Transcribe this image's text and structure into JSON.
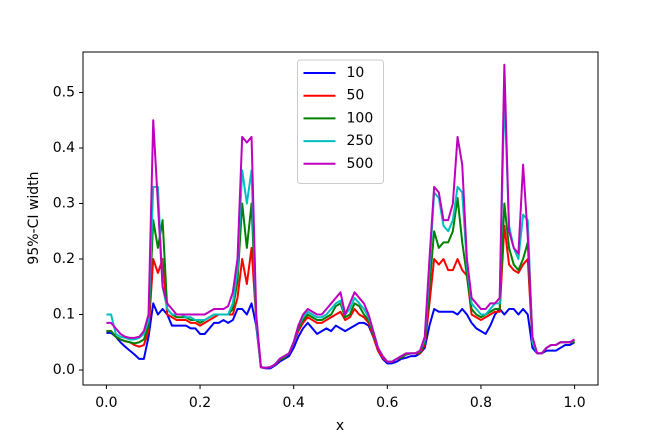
{
  "chart_data": {
    "type": "line",
    "xlabel": "x",
    "ylabel": "95%-CI width",
    "xlim": [
      -0.05,
      1.05
    ],
    "ylim": [
      -0.027,
      0.573
    ],
    "xticks": [
      {
        "value": 0,
        "label": "0.0"
      },
      0.2,
      0.4,
      0.6,
      0.8,
      {
        "value": 1,
        "label": "1.0"
      }
    ],
    "yticks": [
      {
        "value": 0,
        "label": "0.0"
      },
      0.1,
      0.2,
      0.3,
      0.4,
      0.5
    ],
    "legend": "upper center",
    "x": [
      0,
      0.01,
      0.02,
      0.03,
      0.04,
      0.05,
      0.06,
      0.07,
      0.08,
      0.09,
      0.1,
      0.11,
      0.12,
      0.13,
      0.14,
      0.15,
      0.16,
      0.17,
      0.18,
      0.19,
      0.2,
      0.21,
      0.22,
      0.23,
      0.24,
      0.25,
      0.26,
      0.27,
      0.28,
      0.29,
      0.3,
      0.31,
      0.32,
      0.33,
      0.34,
      0.35,
      0.36,
      0.37,
      0.38,
      0.39,
      0.4,
      0.41,
      0.42,
      0.43,
      0.44,
      0.45,
      0.46,
      0.47,
      0.48,
      0.49,
      0.5,
      0.51,
      0.52,
      0.53,
      0.54,
      0.55,
      0.56,
      0.57,
      0.58,
      0.59,
      0.6,
      0.61,
      0.62,
      0.63,
      0.64,
      0.65,
      0.66,
      0.67,
      0.68,
      0.69,
      0.7,
      0.71,
      0.72,
      0.73,
      0.74,
      0.75,
      0.76,
      0.77,
      0.78,
      0.79,
      0.8,
      0.81,
      0.82,
      0.83,
      0.84,
      0.85,
      0.86,
      0.87,
      0.88,
      0.89,
      0.9,
      0.91,
      0.92,
      0.93,
      0.94,
      0.95,
      0.96,
      0.97,
      0.98,
      0.99,
      1
    ],
    "series": [
      {
        "name": "10",
        "color": "#0000ff",
        "values": [
          0.067,
          0.067,
          0.06,
          0.05,
          0.042,
          0.035,
          0.028,
          0.02,
          0.02,
          0.06,
          0.12,
          0.1,
          0.11,
          0.1,
          0.08,
          0.08,
          0.08,
          0.08,
          0.075,
          0.075,
          0.065,
          0.065,
          0.075,
          0.085,
          0.085,
          0.09,
          0.085,
          0.09,
          0.11,
          0.11,
          0.1,
          0.12,
          0.08,
          0.005,
          0.003,
          0.003,
          0.008,
          0.015,
          0.02,
          0.025,
          0.04,
          0.06,
          0.075,
          0.085,
          0.075,
          0.065,
          0.07,
          0.075,
          0.07,
          0.08,
          0.075,
          0.07,
          0.075,
          0.08,
          0.085,
          0.085,
          0.08,
          0.06,
          0.035,
          0.02,
          0.012,
          0.012,
          0.015,
          0.02,
          0.022,
          0.025,
          0.025,
          0.03,
          0.04,
          0.08,
          0.11,
          0.105,
          0.105,
          0.105,
          0.105,
          0.1,
          0.11,
          0.1,
          0.085,
          0.075,
          0.07,
          0.065,
          0.08,
          0.1,
          0.11,
          0.1,
          0.11,
          0.11,
          0.1,
          0.11,
          0.1,
          0.04,
          0.03,
          0.03,
          0.035,
          0.035,
          0.035,
          0.04,
          0.045,
          0.045,
          0.05
        ]
      },
      {
        "name": "50",
        "color": "#ff0000",
        "values": [
          0.07,
          0.07,
          0.06,
          0.055,
          0.052,
          0.05,
          0.045,
          0.042,
          0.045,
          0.07,
          0.2,
          0.175,
          0.2,
          0.1,
          0.095,
          0.09,
          0.09,
          0.09,
          0.085,
          0.085,
          0.08,
          0.085,
          0.09,
          0.095,
          0.1,
          0.1,
          0.1,
          0.1,
          0.13,
          0.2,
          0.155,
          0.22,
          0.09,
          0.005,
          0.004,
          0.005,
          0.01,
          0.018,
          0.022,
          0.03,
          0.05,
          0.07,
          0.085,
          0.095,
          0.09,
          0.085,
          0.085,
          0.09,
          0.095,
          0.1,
          0.105,
          0.09,
          0.095,
          0.11,
          0.1,
          0.095,
          0.085,
          0.06,
          0.035,
          0.022,
          0.015,
          0.015,
          0.02,
          0.022,
          0.028,
          0.03,
          0.03,
          0.03,
          0.045,
          0.12,
          0.2,
          0.19,
          0.2,
          0.18,
          0.18,
          0.2,
          0.18,
          0.17,
          0.1,
          0.095,
          0.09,
          0.095,
          0.1,
          0.105,
          0.105,
          0.26,
          0.19,
          0.18,
          0.175,
          0.19,
          0.2,
          0.05,
          0.03,
          0.03,
          0.04,
          0.045,
          0.045,
          0.05,
          0.05,
          0.05,
          0.05
        ]
      },
      {
        "name": "100",
        "color": "#008000",
        "values": [
          0.07,
          0.07,
          0.06,
          0.055,
          0.052,
          0.05,
          0.048,
          0.05,
          0.055,
          0.08,
          0.27,
          0.22,
          0.27,
          0.11,
          0.1,
          0.095,
          0.095,
          0.095,
          0.09,
          0.09,
          0.085,
          0.09,
          0.095,
          0.1,
          0.1,
          0.1,
          0.1,
          0.11,
          0.16,
          0.3,
          0.22,
          0.3,
          0.09,
          0.005,
          0.004,
          0.005,
          0.01,
          0.018,
          0.022,
          0.03,
          0.05,
          0.075,
          0.09,
          0.1,
          0.095,
          0.09,
          0.09,
          0.095,
          0.1,
          0.115,
          0.12,
          0.095,
          0.1,
          0.12,
          0.115,
          0.1,
          0.09,
          0.065,
          0.04,
          0.025,
          0.015,
          0.015,
          0.02,
          0.022,
          0.028,
          0.03,
          0.03,
          0.032,
          0.05,
          0.15,
          0.25,
          0.22,
          0.23,
          0.23,
          0.25,
          0.31,
          0.23,
          0.17,
          0.11,
          0.1,
          0.095,
          0.1,
          0.105,
          0.11,
          0.11,
          0.3,
          0.22,
          0.19,
          0.18,
          0.2,
          0.23,
          0.05,
          0.03,
          0.03,
          0.04,
          0.045,
          0.045,
          0.05,
          0.05,
          0.05,
          0.05
        ]
      },
      {
        "name": "250",
        "color": "#00bfbf",
        "values": [
          0.1,
          0.1,
          0.065,
          0.06,
          0.058,
          0.055,
          0.055,
          0.058,
          0.065,
          0.09,
          0.33,
          0.33,
          0.15,
          0.11,
          0.1,
          0.1,
          0.1,
          0.095,
          0.095,
          0.09,
          0.09,
          0.09,
          0.095,
          0.1,
          0.1,
          0.1,
          0.1,
          0.12,
          0.18,
          0.36,
          0.3,
          0.36,
          0.09,
          0.005,
          0.004,
          0.005,
          0.01,
          0.02,
          0.025,
          0.03,
          0.05,
          0.08,
          0.095,
          0.105,
          0.1,
          0.095,
          0.095,
          0.1,
          0.11,
          0.12,
          0.125,
          0.1,
          0.11,
          0.13,
          0.12,
          0.11,
          0.095,
          0.07,
          0.04,
          0.025,
          0.015,
          0.015,
          0.02,
          0.025,
          0.03,
          0.03,
          0.03,
          0.035,
          0.055,
          0.18,
          0.32,
          0.31,
          0.26,
          0.25,
          0.27,
          0.33,
          0.32,
          0.19,
          0.12,
          0.11,
          0.1,
          0.1,
          0.11,
          0.12,
          0.12,
          0.5,
          0.26,
          0.22,
          0.2,
          0.28,
          0.27,
          0.05,
          0.03,
          0.03,
          0.04,
          0.045,
          0.045,
          0.05,
          0.05,
          0.05,
          0.055
        ]
      },
      {
        "name": "500",
        "color": "#bf00bf",
        "values": [
          0.085,
          0.085,
          0.075,
          0.065,
          0.06,
          0.058,
          0.058,
          0.06,
          0.07,
          0.1,
          0.45,
          0.3,
          0.15,
          0.12,
          0.11,
          0.1,
          0.1,
          0.1,
          0.1,
          0.1,
          0.1,
          0.1,
          0.105,
          0.11,
          0.11,
          0.11,
          0.115,
          0.14,
          0.2,
          0.42,
          0.41,
          0.42,
          0.1,
          0.005,
          0.004,
          0.005,
          0.01,
          0.02,
          0.025,
          0.03,
          0.05,
          0.08,
          0.1,
          0.11,
          0.105,
          0.1,
          0.1,
          0.11,
          0.12,
          0.13,
          0.14,
          0.1,
          0.12,
          0.14,
          0.13,
          0.12,
          0.1,
          0.07,
          0.04,
          0.025,
          0.015,
          0.015,
          0.02,
          0.025,
          0.03,
          0.03,
          0.03,
          0.035,
          0.06,
          0.2,
          0.33,
          0.32,
          0.27,
          0.27,
          0.3,
          0.42,
          0.37,
          0.2,
          0.13,
          0.12,
          0.11,
          0.11,
          0.12,
          0.12,
          0.13,
          0.55,
          0.25,
          0.22,
          0.21,
          0.37,
          0.24,
          0.06,
          0.03,
          0.03,
          0.04,
          0.045,
          0.045,
          0.05,
          0.05,
          0.05,
          0.055
        ]
      }
    ]
  }
}
